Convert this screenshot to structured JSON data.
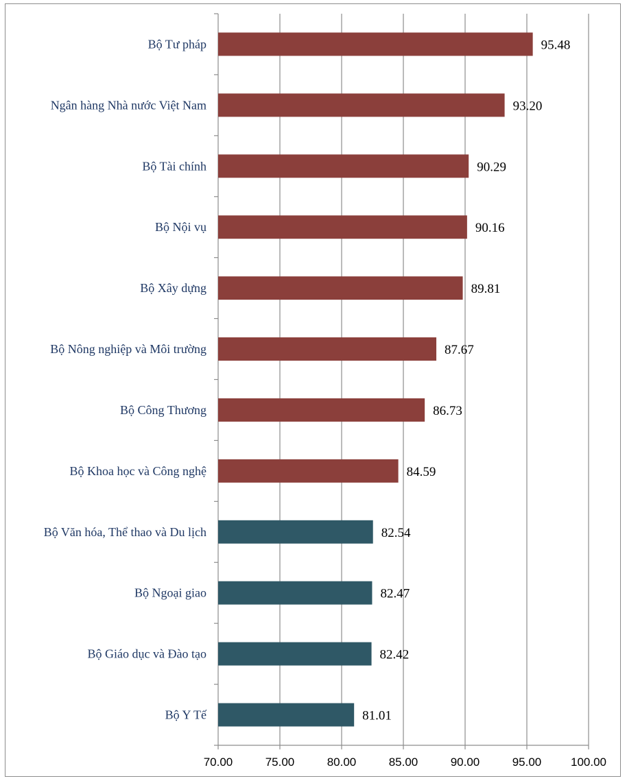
{
  "chart_data": {
    "type": "bar",
    "orientation": "horizontal",
    "title": "",
    "xlabel": "",
    "ylabel": "",
    "xlim": [
      70,
      100
    ],
    "x_ticks": [
      "70.00",
      "75.00",
      "80.00",
      "85.00",
      "90.00",
      "95.00",
      "100.00"
    ],
    "grid": true,
    "legend": "none",
    "categories": [
      "Bộ Tư pháp",
      "Ngân hàng Nhà nước Việt Nam",
      "Bộ Tài chính",
      "Bộ Nội vụ",
      "Bộ Xây dựng",
      "Bộ Nông nghiệp và Môi trường",
      "Bộ Công Thương",
      "Bộ Khoa học và Công nghệ",
      "Bộ Văn hóa, Thể thao và Du lịch",
      "Bộ Ngoại giao",
      "Bộ Giáo dục và Đào tạo",
      "Bộ Y Tế"
    ],
    "values": [
      95.48,
      93.2,
      90.29,
      90.16,
      89.81,
      87.67,
      86.73,
      84.59,
      82.54,
      82.47,
      82.42,
      81.01
    ],
    "value_labels": [
      "95.48",
      "93.20",
      "90.29",
      "90.16",
      "89.81",
      "87.67",
      "86.73",
      "84.59",
      "82.54",
      "82.47",
      "82.42",
      "81.01"
    ],
    "bar_colors": [
      "#8b3f3b",
      "#8b3f3b",
      "#8b3f3b",
      "#8b3f3b",
      "#8b3f3b",
      "#8b3f3b",
      "#8b3f3b",
      "#8b3f3b",
      "#2f5866",
      "#2f5866",
      "#2f5866",
      "#2f5866"
    ],
    "colors": {
      "high_group": "#8b3f3b",
      "low_group": "#2f5866",
      "category_text": "#1f3864",
      "gridline": "#8c8c8c"
    }
  }
}
